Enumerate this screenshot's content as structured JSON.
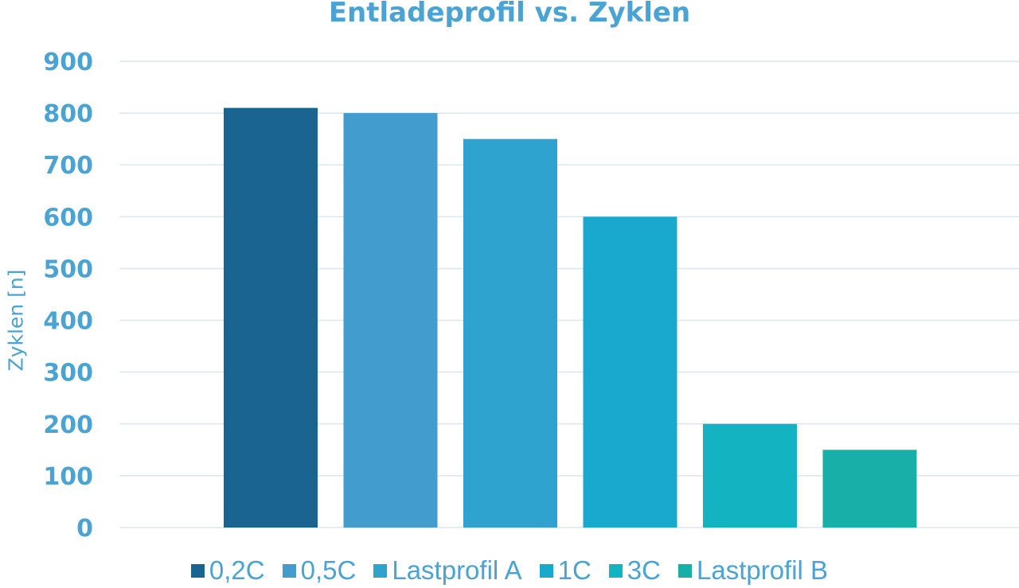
{
  "chart_data": {
    "type": "bar",
    "title": "Entladeprofil vs. Zyklen",
    "xlabel": "",
    "ylabel": "Zyklen [n]",
    "ylim": [
      0,
      900
    ],
    "yticks": [
      0,
      100,
      200,
      300,
      400,
      500,
      600,
      700,
      800,
      900
    ],
    "grid": true,
    "legend_position": "bottom",
    "categories": [
      "0,2C",
      "0,5C",
      "Lastprofil A",
      "1C",
      "3C",
      "Lastprofil B"
    ],
    "values": [
      810,
      800,
      750,
      600,
      200,
      150
    ],
    "colors": [
      "#1a6491",
      "#429ccd",
      "#2fa3d0",
      "#19a9cf",
      "#14b3c2",
      "#18afa8"
    ],
    "text_color": "#4aa3d3"
  }
}
